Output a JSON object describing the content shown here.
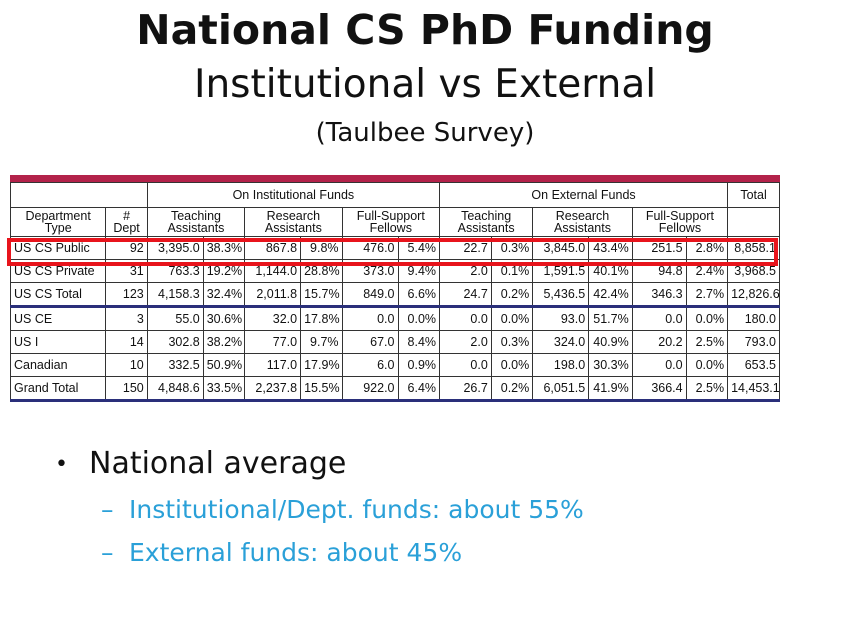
{
  "title": "National CS PhD Funding",
  "subtitle": "Institutional vs External",
  "source": "(Taulbee Survey)",
  "table": {
    "group_headers": [
      "On Institutional Funds",
      "On External Funds",
      "Total"
    ],
    "col_headers": [
      "Department Type",
      "# Dept",
      "Teaching Assistants",
      "Research Assistants",
      "Full-Support Fellows",
      "Teaching Assistants",
      "Research Assistants",
      "Full-Support Fellows"
    ],
    "rows": [
      {
        "dept": "US CS Public",
        "n": "92",
        "c": [
          "3,395.0",
          "38.3%",
          "867.8",
          "9.8%",
          "476.0",
          "5.4%",
          "22.7",
          "0.3%",
          "3,845.0",
          "43.4%",
          "251.5",
          "2.8%"
        ],
        "total": "8,858.1"
      },
      {
        "dept": "US CS Private",
        "n": "31",
        "c": [
          "763.3",
          "19.2%",
          "1,144.0",
          "28.8%",
          "373.0",
          "9.4%",
          "2.0",
          "0.1%",
          "1,591.5",
          "40.1%",
          "94.8",
          "2.4%"
        ],
        "total": "3,968.5"
      },
      {
        "dept": "US CS Total",
        "n": "123",
        "c": [
          "4,158.3",
          "32.4%",
          "2,011.8",
          "15.7%",
          "849.0",
          "6.6%",
          "24.7",
          "0.2%",
          "5,436.5",
          "42.4%",
          "346.3",
          "2.7%"
        ],
        "total": "12,826.6"
      },
      {
        "dept": "US CE",
        "n": "3",
        "c": [
          "55.0",
          "30.6%",
          "32.0",
          "17.8%",
          "0.0",
          "0.0%",
          "0.0",
          "0.0%",
          "93.0",
          "51.7%",
          "0.0",
          "0.0%"
        ],
        "total": "180.0"
      },
      {
        "dept": "US I",
        "n": "14",
        "c": [
          "302.8",
          "38.2%",
          "77.0",
          "9.7%",
          "67.0",
          "8.4%",
          "2.0",
          "0.3%",
          "324.0",
          "40.9%",
          "20.2",
          "2.5%"
        ],
        "total": "793.0"
      },
      {
        "dept": "Canadian",
        "n": "10",
        "c": [
          "332.5",
          "50.9%",
          "117.0",
          "17.9%",
          "6.0",
          "0.9%",
          "0.0",
          "0.0%",
          "198.0",
          "30.3%",
          "0.0",
          "0.0%"
        ],
        "total": "653.5"
      },
      {
        "dept": "Grand Total",
        "n": "150",
        "c": [
          "4,848.6",
          "33.5%",
          "2,237.8",
          "15.5%",
          "922.0",
          "6.4%",
          "26.7",
          "0.2%",
          "6,051.5",
          "41.9%",
          "366.4",
          "2.5%"
        ],
        "total": "14,453.1"
      }
    ]
  },
  "bullets": {
    "main": "National average",
    "sub": [
      "Institutional/Dept. funds: about 55%",
      "External funds: about 45%"
    ]
  },
  "colors": {
    "accent_bar": "#b3224a",
    "highlight": "#e8141c",
    "subtext": "#2aa0d8"
  }
}
